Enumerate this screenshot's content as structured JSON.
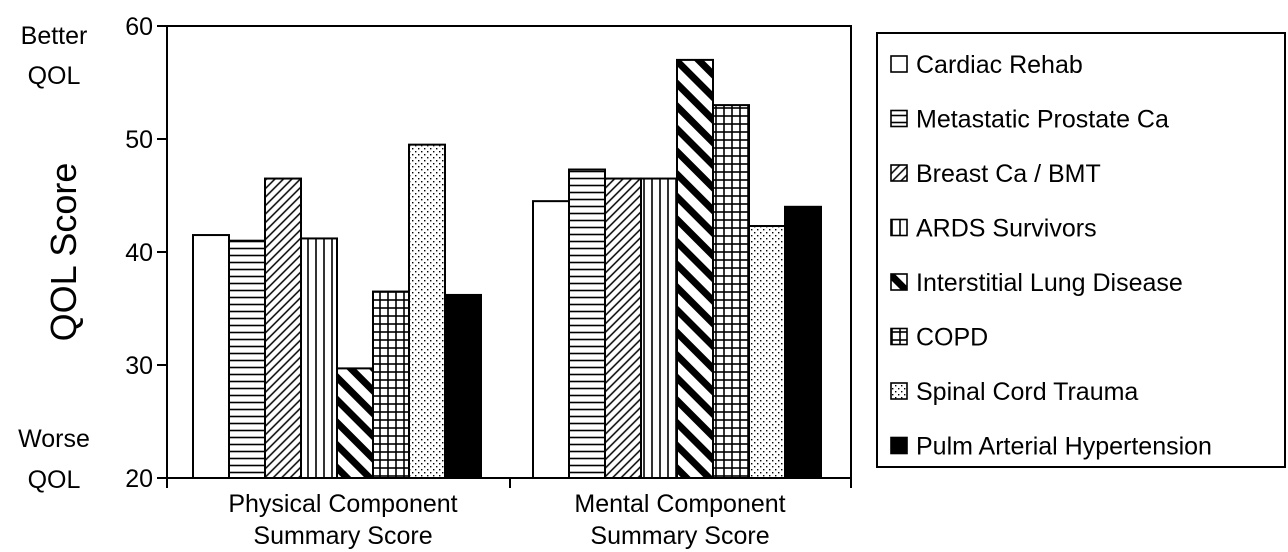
{
  "chart_data": {
    "type": "bar",
    "ylabel": "QOL Score",
    "ylim": [
      20,
      60
    ],
    "yticks": [
      20,
      30,
      40,
      50,
      60
    ],
    "grid": false,
    "legend_position": "right",
    "side_labels": {
      "top": [
        "Better",
        "QOL"
      ],
      "bottom": [
        "Worse",
        "QOL"
      ]
    },
    "categories": [
      [
        "Physical Component",
        "Summary Score"
      ],
      [
        "Mental Component",
        "Summary Score"
      ]
    ],
    "series": [
      {
        "name": "Cardiac Rehab",
        "pattern": "empty",
        "values": [
          41.5,
          44.5
        ]
      },
      {
        "name": "Metastatic Prostate Ca",
        "pattern": "hlines",
        "values": [
          41.0,
          47.3
        ]
      },
      {
        "name": "Breast Ca / BMT",
        "pattern": "diag-thin",
        "values": [
          46.5,
          46.5
        ]
      },
      {
        "name": "ARDS Survivors",
        "pattern": "vlines",
        "values": [
          41.2,
          46.5
        ]
      },
      {
        "name": "Interstitial Lung Disease",
        "pattern": "diag-thick",
        "values": [
          29.7,
          57.0
        ]
      },
      {
        "name": "COPD",
        "pattern": "grid",
        "values": [
          36.5,
          53.0
        ]
      },
      {
        "name": "Spinal Cord Trauma",
        "pattern": "dots",
        "values": [
          49.5,
          42.3
        ]
      },
      {
        "name": "Pulm Arterial Hypertension",
        "pattern": "solid",
        "values": [
          36.2,
          44.0
        ]
      }
    ]
  }
}
